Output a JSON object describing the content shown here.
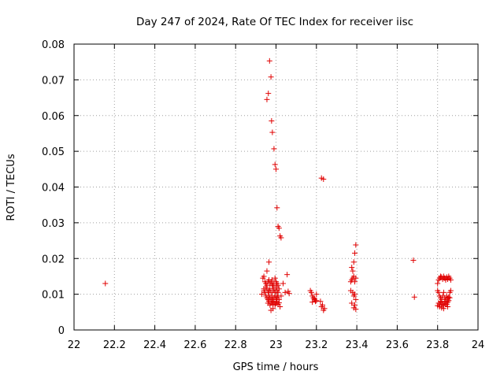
{
  "chart_data": {
    "type": "scatter",
    "title": "Day 247 of 2024, Rate Of TEC Index for receiver iisc",
    "xlabel": "GPS time / hours",
    "ylabel": "ROTI / TECUs",
    "xlim": [
      22,
      24
    ],
    "ylim": [
      0,
      0.08
    ],
    "xticks": [
      "22",
      "22.2",
      "22.4",
      "22.6",
      "22.8",
      "23",
      "23.2",
      "23.4",
      "23.6",
      "23.8",
      "24"
    ],
    "yticks": [
      "0",
      "0.01",
      "0.02",
      "0.03",
      "0.04",
      "0.05",
      "0.06",
      "0.07",
      "0.08"
    ],
    "grid": true,
    "marker": "+",
    "color": "#e00000",
    "series": [
      {
        "name": "ROTI",
        "x": [
          22.155,
          22.935,
          22.94,
          22.945,
          22.95,
          22.955,
          22.96,
          22.965,
          22.97,
          22.975,
          22.98,
          22.985,
          22.99,
          22.995,
          23.0,
          23.005,
          23.01,
          22.94,
          22.945,
          22.95,
          22.955,
          22.96,
          22.965,
          22.97,
          22.975,
          22.98,
          22.985,
          22.99,
          22.995,
          23.0,
          23.005,
          23.01,
          23.015,
          22.95,
          22.955,
          22.96,
          22.965,
          22.97,
          22.975,
          22.98,
          22.985,
          22.99,
          22.995,
          23.0,
          23.005,
          23.01,
          22.96,
          22.965,
          22.97,
          22.975,
          22.98,
          22.985,
          22.99,
          22.995,
          23.0,
          23.005,
          23.01,
          23.015,
          23.02,
          22.93,
          22.94,
          22.955,
          22.965,
          22.975,
          22.985,
          22.995,
          23.005,
          23.015,
          23.025,
          23.035,
          23.045,
          23.055,
          23.06,
          23.065,
          22.955,
          22.962,
          22.968,
          22.975,
          22.978,
          22.982,
          22.99,
          22.995,
          23.0,
          23.005,
          23.01,
          23.015,
          23.02,
          23.025,
          23.17,
          23.175,
          23.18,
          23.185,
          23.19,
          23.195,
          23.2,
          23.18,
          23.19,
          23.2,
          23.22,
          23.225,
          23.23,
          23.235,
          23.24,
          23.225,
          23.235,
          23.37,
          23.375,
          23.38,
          23.385,
          23.39,
          23.395,
          23.375,
          23.385,
          23.38,
          23.39,
          23.395,
          23.37,
          23.38,
          23.39,
          23.385,
          23.395,
          23.375,
          23.39,
          23.385,
          23.395,
          23.68,
          23.685,
          23.8,
          23.805,
          23.81,
          23.815,
          23.82,
          23.825,
          23.83,
          23.835,
          23.84,
          23.845,
          23.85,
          23.855,
          23.86,
          23.865,
          23.8,
          23.805,
          23.81,
          23.815,
          23.82,
          23.825,
          23.83,
          23.835,
          23.84,
          23.845,
          23.85,
          23.855,
          23.86,
          23.805,
          23.81,
          23.815,
          23.82,
          23.825,
          23.83,
          23.835,
          23.84,
          23.845,
          23.85,
          23.855,
          23.8,
          23.81,
          23.82,
          23.83,
          23.84,
          23.85,
          23.86,
          23.865
        ],
        "y": [
          0.013,
          0.0145,
          0.015,
          0.0135,
          0.013,
          0.0125,
          0.0135,
          0.014,
          0.013,
          0.0135,
          0.014,
          0.0125,
          0.013,
          0.0145,
          0.0135,
          0.013,
          0.0125,
          0.011,
          0.0105,
          0.012,
          0.0115,
          0.0105,
          0.011,
          0.0115,
          0.0105,
          0.0125,
          0.011,
          0.0115,
          0.0105,
          0.012,
          0.011,
          0.0105,
          0.0115,
          0.0095,
          0.009,
          0.0085,
          0.0095,
          0.009,
          0.0085,
          0.0095,
          0.0085,
          0.009,
          0.0095,
          0.0085,
          0.009,
          0.0095,
          0.0075,
          0.008,
          0.007,
          0.0075,
          0.008,
          0.0072,
          0.0078,
          0.007,
          0.0075,
          0.008,
          0.0072,
          0.0076,
          0.0065,
          0.01,
          0.0115,
          0.0165,
          0.019,
          0.0055,
          0.006,
          0.0105,
          0.0095,
          0.0085,
          0.0095,
          0.013,
          0.0105,
          0.0155,
          0.0108,
          0.0102,
          0.0645,
          0.0662,
          0.0753,
          0.0708,
          0.0585,
          0.0553,
          0.0507,
          0.0463,
          0.045,
          0.0342,
          0.029,
          0.0285,
          0.0263,
          0.0258,
          0.011,
          0.0105,
          0.0095,
          0.009,
          0.0085,
          0.008,
          0.01,
          0.0078,
          0.0088,
          0.0082,
          0.008,
          0.0065,
          0.007,
          0.0055,
          0.006,
          0.0425,
          0.0422,
          0.0135,
          0.014,
          0.0145,
          0.015,
          0.0135,
          0.0145,
          0.0175,
          0.019,
          0.0165,
          0.0215,
          0.0238,
          0.011,
          0.0105,
          0.01,
          0.0095,
          0.0085,
          0.0075,
          0.007,
          0.0062,
          0.0058,
          0.0195,
          0.0092,
          0.013,
          0.014,
          0.0145,
          0.015,
          0.0148,
          0.0142,
          0.015,
          0.0145,
          0.014,
          0.0148,
          0.0142,
          0.015,
          0.0145,
          0.014,
          0.011,
          0.0105,
          0.0095,
          0.009,
          0.0085,
          0.0095,
          0.0105,
          0.009,
          0.0085,
          0.0095,
          0.0088,
          0.0092,
          0.0105,
          0.0075,
          0.007,
          0.008,
          0.0078,
          0.0072,
          0.0068,
          0.0075,
          0.008,
          0.0072,
          0.0078,
          0.0082,
          0.0068,
          0.0065,
          0.0062,
          0.006,
          0.0072,
          0.0065,
          0.009,
          0.011
        ]
      }
    ]
  }
}
